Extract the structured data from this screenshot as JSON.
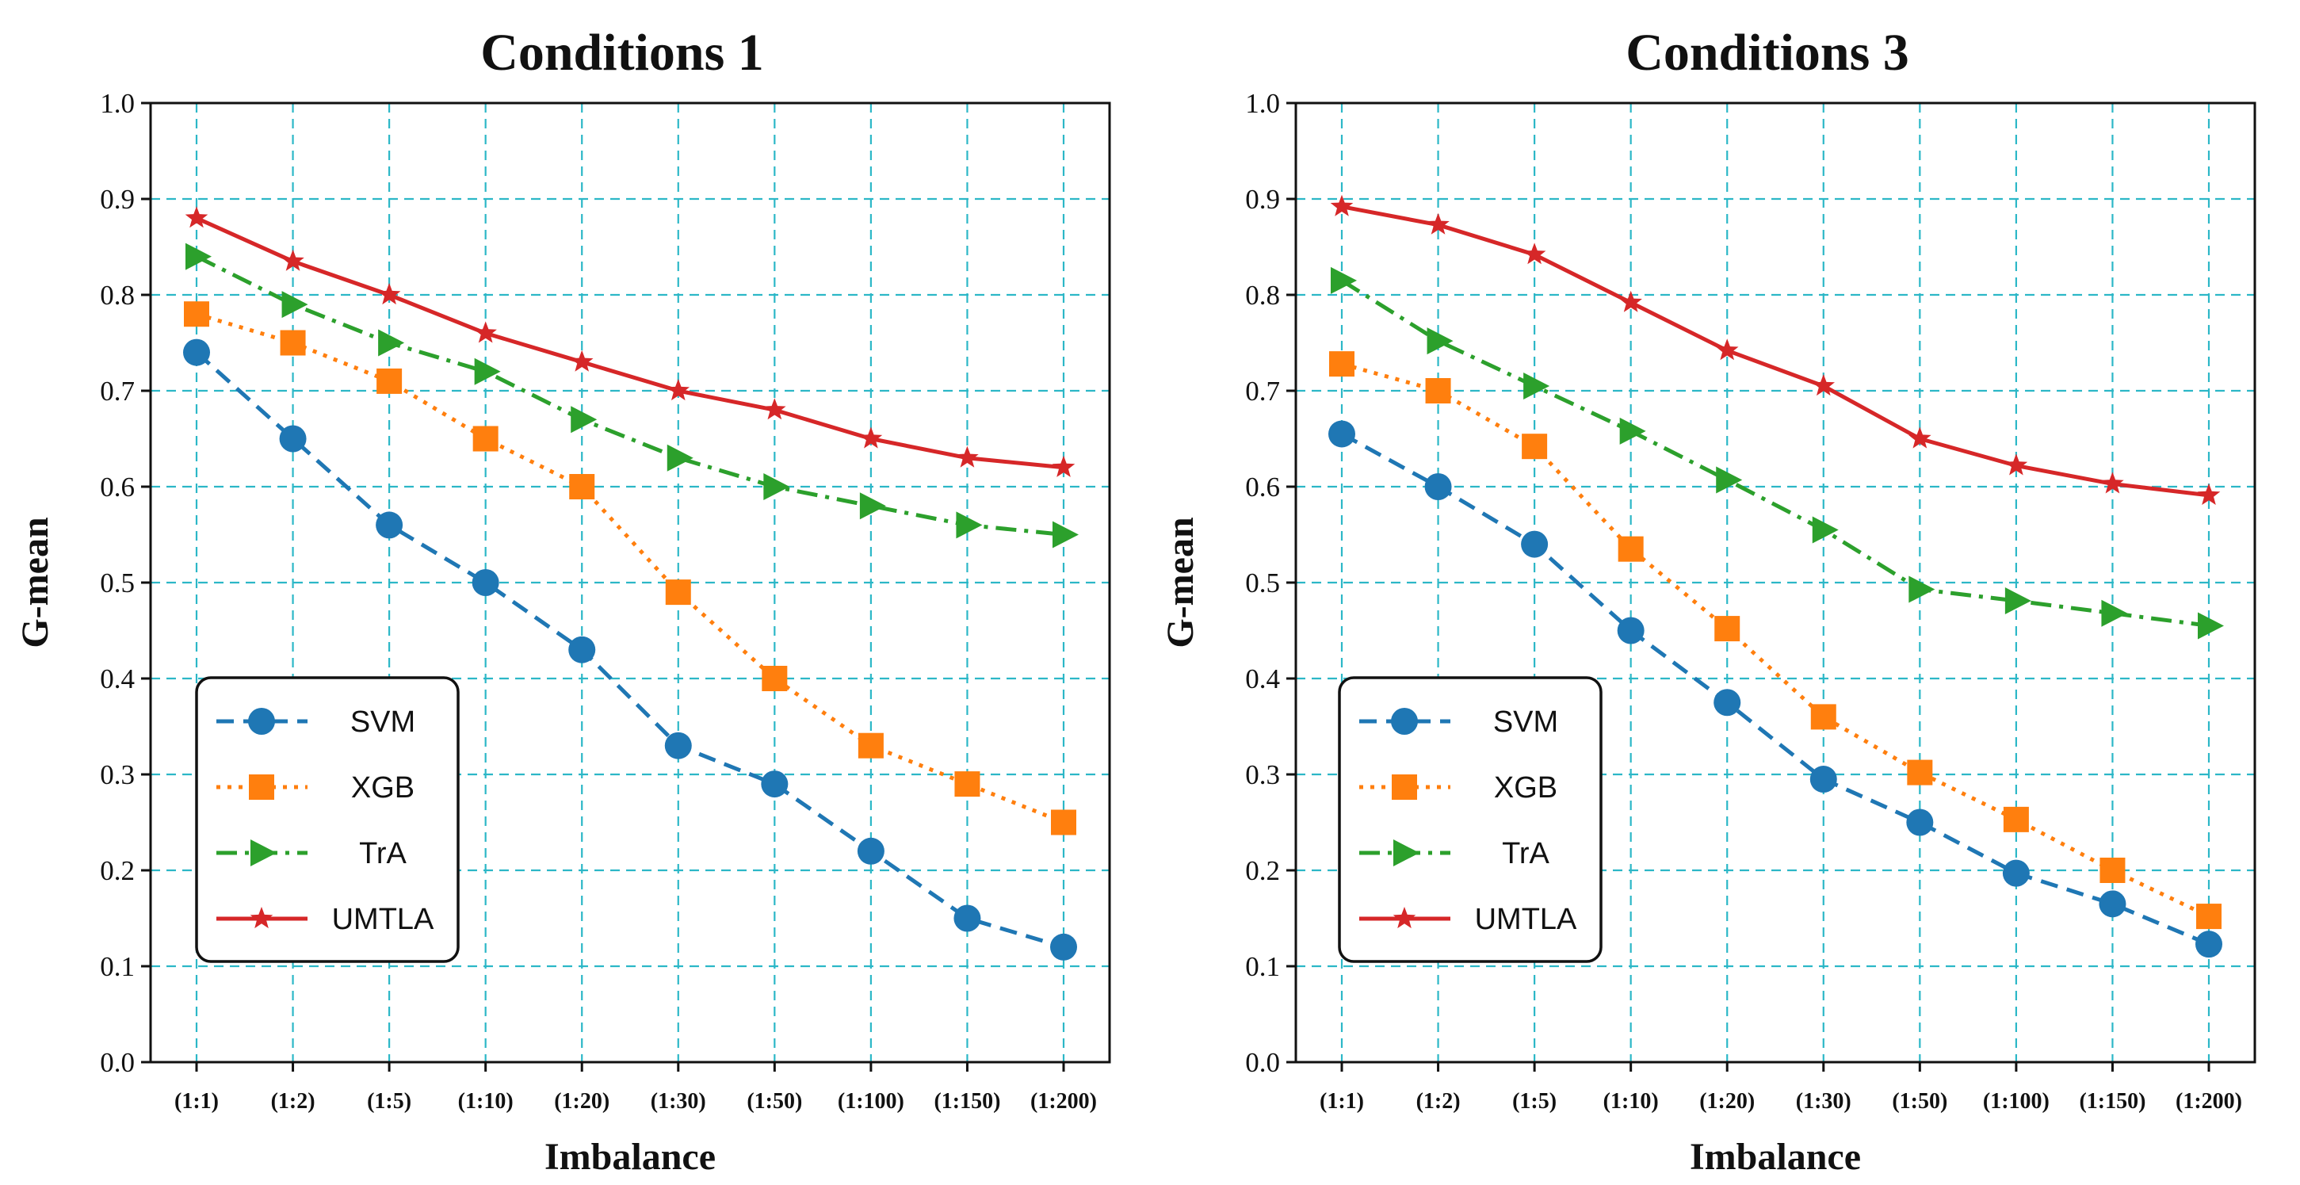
{
  "chart_data": [
    {
      "type": "line",
      "title": "Conditions 1",
      "xlabel": "Imbalance",
      "ylabel": "G-mean",
      "ylim": [
        0,
        1.0
      ],
      "yticks": [
        "0.0",
        "0.1",
        "0.2",
        "0.3",
        "0.4",
        "0.5",
        "0.6",
        "0.7",
        "0.8",
        "0.9",
        "1.0"
      ],
      "grid": true,
      "legend_position": "lower-left",
      "categories": [
        "(1:1)",
        "(1:2)",
        "(1:5)",
        "(1:10)",
        "(1:20)",
        "(1:30)",
        "(1:50)",
        "(1:100)",
        "(1:150)",
        "(1:200)"
      ],
      "series": [
        {
          "name": "SVM",
          "color": "#1f77b4",
          "marker": "circle",
          "linestyle": "dashed",
          "values": [
            0.74,
            0.65,
            0.56,
            0.5,
            0.43,
            0.33,
            0.29,
            0.22,
            0.15,
            0.12
          ]
        },
        {
          "name": "XGB",
          "color": "#ff7f0e",
          "marker": "square",
          "linestyle": "dotted",
          "values": [
            0.78,
            0.75,
            0.71,
            0.65,
            0.6,
            0.49,
            0.4,
            0.33,
            0.29,
            0.25
          ]
        },
        {
          "name": "TrA",
          "color": "#2ca02c",
          "marker": "triangle-right",
          "linestyle": "dashdot",
          "values": [
            0.84,
            0.79,
            0.75,
            0.72,
            0.67,
            0.63,
            0.6,
            0.58,
            0.56,
            0.55
          ]
        },
        {
          "name": "UMTLA",
          "color": "#d62728",
          "marker": "star",
          "linestyle": "solid",
          "values": [
            0.88,
            0.835,
            0.8,
            0.76,
            0.73,
            0.7,
            0.68,
            0.65,
            0.63,
            0.62
          ]
        }
      ]
    },
    {
      "type": "line",
      "title": "Conditions 3",
      "xlabel": "Imbalance",
      "ylabel": "G-mean",
      "ylim": [
        0,
        1.0
      ],
      "yticks": [
        "0.0",
        "0.1",
        "0.2",
        "0.3",
        "0.4",
        "0.5",
        "0.6",
        "0.7",
        "0.8",
        "0.9",
        "1.0"
      ],
      "grid": true,
      "legend_position": "lower-left",
      "categories": [
        "(1:1)",
        "(1:2)",
        "(1:5)",
        "(1:10)",
        "(1:20)",
        "(1:30)",
        "(1:50)",
        "(1:100)",
        "(1:150)",
        "(1:200)"
      ],
      "series": [
        {
          "name": "SVM",
          "color": "#1f77b4",
          "marker": "circle",
          "linestyle": "dashed",
          "values": [
            0.655,
            0.6,
            0.54,
            0.45,
            0.375,
            0.295,
            0.25,
            0.197,
            0.165,
            0.123
          ]
        },
        {
          "name": "XGB",
          "color": "#ff7f0e",
          "marker": "square",
          "linestyle": "dotted",
          "values": [
            0.728,
            0.7,
            0.642,
            0.535,
            0.452,
            0.36,
            0.302,
            0.253,
            0.2,
            0.152
          ]
        },
        {
          "name": "TrA",
          "color": "#2ca02c",
          "marker": "triangle-right",
          "linestyle": "dashdot",
          "values": [
            0.815,
            0.752,
            0.705,
            0.658,
            0.607,
            0.555,
            0.493,
            0.481,
            0.468,
            0.455
          ]
        },
        {
          "name": "UMTLA",
          "color": "#d62728",
          "marker": "star",
          "linestyle": "solid",
          "values": [
            0.892,
            0.873,
            0.842,
            0.792,
            0.742,
            0.705,
            0.65,
            0.622,
            0.603,
            0.591
          ]
        }
      ]
    }
  ]
}
